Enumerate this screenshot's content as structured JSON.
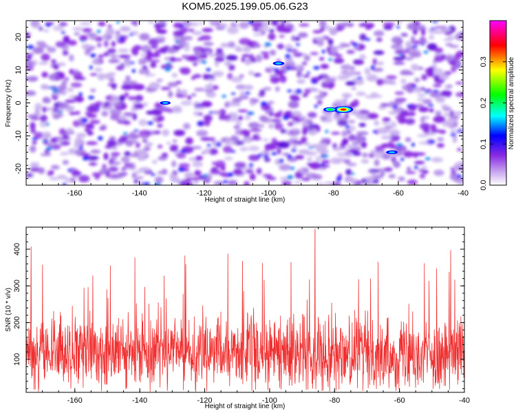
{
  "title": "KOM5.2025.199.05.06.G23",
  "chart_data": [
    {
      "type": "heatmap",
      "xlabel": "Height of straight line (km)",
      "ylabel": "Frequency (Hz)",
      "xlim": [
        -175,
        -40
      ],
      "ylim": [
        -25,
        25
      ],
      "xticks": [
        -160,
        -140,
        -120,
        -100,
        -80,
        -60,
        -40
      ],
      "yticks": [
        -20,
        -10,
        0,
        10,
        20
      ],
      "colorbar": {
        "label": "Normalized spectral amplitude",
        "range": [
          0,
          0.4
        ],
        "ticks": [
          "0.0",
          "0.1",
          "0.2",
          "0.3"
        ],
        "colors": [
          "#ffffff",
          "#8a2be2",
          "#0000ff",
          "#00ffff",
          "#00ff00",
          "#ffff00",
          "#ff0000",
          "#ff00ff"
        ]
      },
      "peaks": [
        {
          "x": -77,
          "y": -2,
          "value": 0.33
        },
        {
          "x": -81,
          "y": -2,
          "value": 0.18
        },
        {
          "x": -97,
          "y": 12,
          "value": 0.12
        },
        {
          "x": -62,
          "y": -15,
          "value": 0.12
        },
        {
          "x": -132,
          "y": 0,
          "value": 0.1
        }
      ]
    },
    {
      "type": "line",
      "xlabel": "Height of straight line (km)",
      "ylabel": "SNR (10 * v/v)",
      "xlim": [
        -175,
        -40
      ],
      "ylim": [
        10,
        460
      ],
      "xticks": [
        -160,
        -140,
        -120,
        -100,
        -80,
        -60,
        -40
      ],
      "yticks": [
        100,
        200,
        300,
        400
      ],
      "color": "#f03030",
      "baseline_mean": 115,
      "max_point": {
        "x": -86,
        "y": 455
      }
    }
  ]
}
